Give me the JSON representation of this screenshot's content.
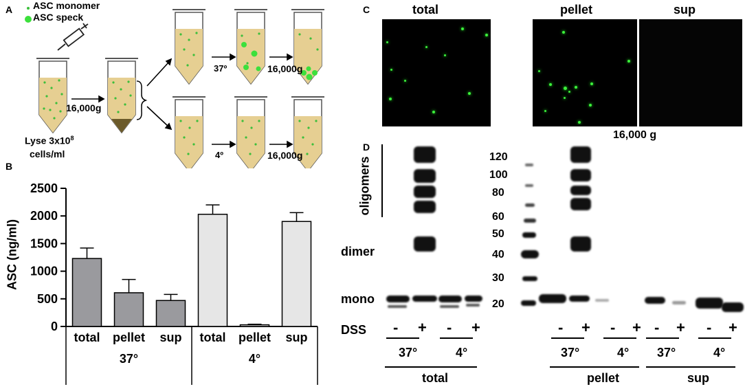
{
  "panelA": {
    "label": "A",
    "legend_monomer": "ASC monomer",
    "legend_speck": "ASC speck",
    "lyse_line1": "Lyse 3x10",
    "lyse_sup": "8",
    "lyse_line2": "cells/ml",
    "spin1": "16,000g",
    "temp_hot": "37º",
    "temp_cold": "4º",
    "spin2": "16,000g",
    "spin3": "16,000g"
  },
  "panelB": {
    "label": "B"
  },
  "panelC": {
    "label": "C",
    "titles": [
      "total",
      "pellet",
      "sup"
    ],
    "spin": "16,000 g"
  },
  "panelD": {
    "label": "D",
    "oligomers": "oligomers",
    "dimer": "dimer",
    "mono": "mono",
    "mw": [
      "120",
      "100",
      "80",
      "60",
      "50",
      "40",
      "30",
      "20"
    ],
    "dss": "DSS",
    "signs": [
      "-",
      "+",
      "-",
      "+",
      "-",
      "+",
      "-",
      "+",
      "-",
      "+",
      "-",
      "+"
    ],
    "temps": [
      "37°",
      "4°",
      "37°",
      "4°",
      "37°",
      "4°"
    ],
    "groups": [
      "total",
      "pellet",
      "sup"
    ]
  },
  "chart_data": {
    "type": "bar",
    "ylabel": "ASC (ng/ml)",
    "ylim": [
      0,
      2500
    ],
    "yticks": [
      0,
      500,
      1000,
      1500,
      2000,
      2500
    ],
    "categories": [
      "total",
      "pellet",
      "sup",
      "total",
      "pellet",
      "sup"
    ],
    "groups": [
      "37°",
      "4°"
    ],
    "values": [
      1230,
      610,
      470,
      2030,
      30,
      1900
    ],
    "errors": [
      190,
      240,
      110,
      170,
      10,
      160
    ],
    "colors": [
      "#9a9a9e",
      "#9a9a9e",
      "#9a9a9e",
      "#e6e6e6",
      "#e6e6e6",
      "#e6e6e6"
    ]
  }
}
